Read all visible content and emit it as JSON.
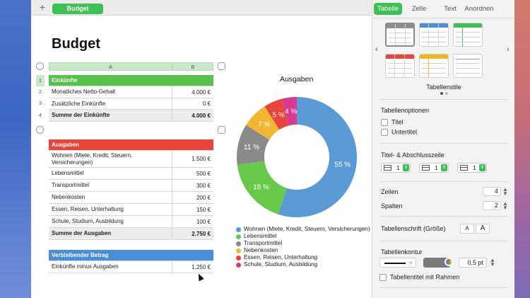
{
  "sheet_tab": {
    "label": "Budget",
    "add_label": "+"
  },
  "inspector": {
    "tabs": [
      {
        "label": "Tabelle",
        "active": true
      },
      {
        "label": "Zelle",
        "active": false
      },
      {
        "label": "Text",
        "active": false
      },
      {
        "label": "Anordnen",
        "active": false
      }
    ],
    "styles_label": "Tabellenstile",
    "style_colors": [
      "#8f8f8f",
      "#4a90d9",
      "#3fbf55",
      "#e8453c",
      "#f2b51b",
      "#9a9a9a"
    ],
    "options_title": "Tabellenoptionen",
    "options": [
      {
        "label": "Titel",
        "checked": false
      },
      {
        "label": "Untertitel",
        "checked": false
      }
    ],
    "header_footer_title": "Titel- & Abschlusszeile",
    "header_footer_values": [
      "1",
      "1",
      "1"
    ],
    "rows_label": "Zeilen",
    "rows_value": "4",
    "columns_label": "Spalten",
    "columns_value": "2",
    "font_size_label": "Tabellenschrift (Größe)",
    "font_small": "A",
    "font_large": "A",
    "outline_title": "Tabellenkontur",
    "outline_pt": "0,5 pt",
    "title_border_label": "Tabellentitel mit Rahmen",
    "arrow_left": "‹",
    "arrow_right": "›"
  },
  "document": {
    "title": "Budget",
    "col_a": "A",
    "col_b": "B",
    "income_table": {
      "color": "#56c24a",
      "header": [
        "Einkünfte",
        ""
      ],
      "rows": [
        [
          "Monatliches Netto-Gehalt",
          "4.000 €"
        ],
        [
          "Zusätzliche Einkünfte",
          "0 €"
        ]
      ],
      "footer": [
        "Summe der Einkünfte",
        "4.000 €"
      ],
      "row_numbers": [
        "1",
        "2",
        "3",
        "4"
      ]
    },
    "expenses_table": {
      "color": "#e8453c",
      "header": [
        "Ausgaben",
        ""
      ],
      "rows": [
        [
          "Wohnen (Miete, Kredit, Steuern, Versicherungen)",
          "1.500 €"
        ],
        [
          "Lebensmittel",
          "500 €"
        ],
        [
          "Transportmittel",
          "300 €"
        ],
        [
          "Nebenkosten",
          "200 €"
        ],
        [
          "Essen, Reisen, Unterhaltung",
          "150 €"
        ],
        [
          "Schule, Studium, Ausbildung",
          "100 €"
        ]
      ],
      "footer": [
        "Summe der Ausgaben",
        "2.750 €"
      ]
    },
    "remaining_table": {
      "color": "#4a8fd6",
      "header": [
        "Verbleibender Betrag",
        ""
      ],
      "rows": [
        [
          "Einkünfte minus Ausgaben",
          "1.250 €"
        ]
      ]
    }
  },
  "chart_data": {
    "type": "pie",
    "title": "Ausgaben",
    "categories": [
      "Wohnen (Miete, Kredit, Steuern, Versicherungen)",
      "Lebensmittel",
      "Transportmittel",
      "Nebenkosten",
      "Essen, Reisen, Unterhaltung",
      "Schule, Studium, Ausbildung"
    ],
    "values": [
      55,
      18,
      11,
      7,
      5,
      4
    ],
    "labels": [
      "55 %",
      "18 %",
      "11 %",
      "7 %",
      "5 %",
      "4 %"
    ],
    "colors": [
      "#5b9bd5",
      "#66c94a",
      "#8a8a8a",
      "#f2b633",
      "#e8453c",
      "#d63b8f"
    ],
    "donut": true,
    "legend_position": "bottom"
  }
}
